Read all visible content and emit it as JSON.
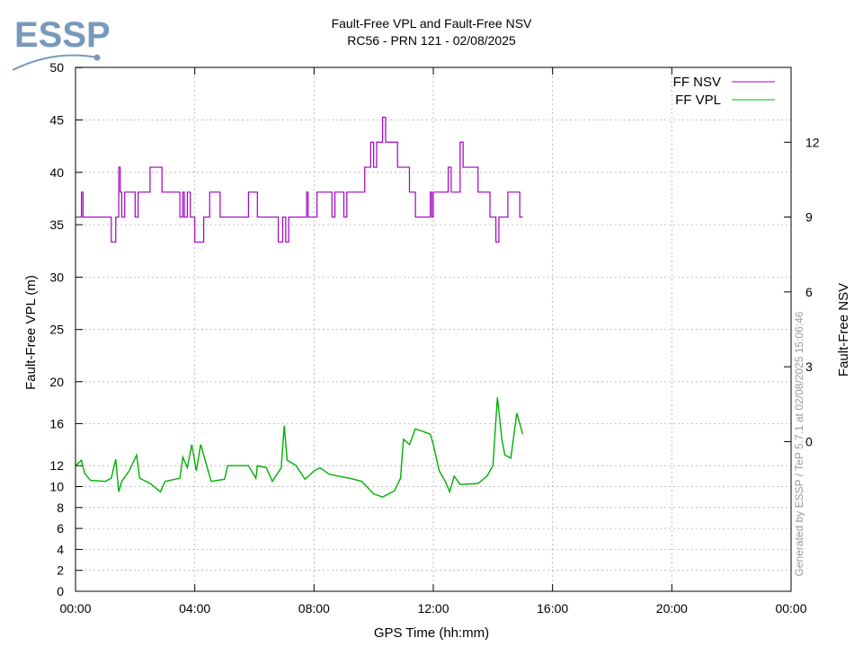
{
  "logo": {
    "text": "ESSP",
    "color": "#7799bb"
  },
  "chart_data": {
    "type": "line",
    "title": "Fault-Free VPL and Fault-Free NSV",
    "subtitle": "RC56 - PRN 121 - 02/08/2025",
    "xlabel": "GPS Time (hh:mm)",
    "ylabel": "Fault-Free VPL (m)",
    "y2label": "Fault-Free NSV",
    "generated_note": "Generated by ESSP / TeP 5.7.1 at 02/08/2025 15:06:46",
    "x_ticks": [
      "00:00",
      "04:00",
      "08:00",
      "12:00",
      "16:00",
      "20:00",
      "00:00"
    ],
    "y_ticks_lower": [
      "0",
      "2",
      "4",
      "6",
      "8",
      "10",
      "12",
      "16",
      "20"
    ],
    "y_ticks_upper": [
      "25",
      "30",
      "35",
      "40",
      "45",
      "50"
    ],
    "y2_ticks": [
      "0",
      "3",
      "6",
      "9",
      "12"
    ],
    "y_scale_note": "left axis is piecewise: 0-12 m in 2 m steps, 12-20 m in 4 m steps, 20-50 m in 5 m steps",
    "xlim_hours": [
      0,
      24
    ],
    "y2lim": [
      -6,
      15
    ],
    "grid": true,
    "legend_position": "top-right",
    "series": [
      {
        "name": "FF NSV",
        "color": "#a000c0",
        "axis": "right",
        "points": [
          [
            0.0,
            9
          ],
          [
            0.2,
            10
          ],
          [
            0.25,
            9
          ],
          [
            1.2,
            8
          ],
          [
            1.35,
            9
          ],
          [
            1.45,
            11
          ],
          [
            1.5,
            10
          ],
          [
            1.55,
            9
          ],
          [
            1.65,
            10
          ],
          [
            2.0,
            9
          ],
          [
            2.1,
            10
          ],
          [
            2.5,
            11
          ],
          [
            2.9,
            10
          ],
          [
            3.5,
            9
          ],
          [
            3.6,
            10
          ],
          [
            3.65,
            9
          ],
          [
            3.75,
            10
          ],
          [
            3.85,
            9
          ],
          [
            4.0,
            8
          ],
          [
            4.3,
            9
          ],
          [
            4.5,
            10
          ],
          [
            4.85,
            9
          ],
          [
            5.8,
            10
          ],
          [
            6.1,
            9
          ],
          [
            6.5,
            9
          ],
          [
            6.8,
            8
          ],
          [
            6.95,
            9
          ],
          [
            7.05,
            8
          ],
          [
            7.15,
            9
          ],
          [
            7.7,
            9
          ],
          [
            7.75,
            10
          ],
          [
            7.8,
            9
          ],
          [
            8.1,
            10
          ],
          [
            8.6,
            9
          ],
          [
            8.7,
            10
          ],
          [
            9.0,
            9
          ],
          [
            9.1,
            10
          ],
          [
            9.7,
            11
          ],
          [
            9.9,
            12
          ],
          [
            10.0,
            11
          ],
          [
            10.1,
            12
          ],
          [
            10.3,
            13
          ],
          [
            10.4,
            12
          ],
          [
            10.8,
            11
          ],
          [
            11.2,
            10
          ],
          [
            11.4,
            9
          ],
          [
            11.9,
            10
          ],
          [
            11.95,
            9
          ],
          [
            12.0,
            10
          ],
          [
            12.5,
            11
          ],
          [
            12.6,
            10
          ],
          [
            12.9,
            12
          ],
          [
            13.0,
            11
          ],
          [
            13.5,
            10
          ],
          [
            13.9,
            9
          ],
          [
            14.1,
            8
          ],
          [
            14.2,
            9
          ],
          [
            14.5,
            10
          ],
          [
            14.9,
            9
          ],
          [
            15.0,
            9
          ]
        ]
      },
      {
        "name": "FF VPL",
        "color": "#00b000",
        "axis": "left",
        "points": [
          [
            0.0,
            12.0
          ],
          [
            0.2,
            12.5
          ],
          [
            0.3,
            11.3
          ],
          [
            0.5,
            10.6
          ],
          [
            1.0,
            10.5
          ],
          [
            1.2,
            10.8
          ],
          [
            1.35,
            12.6
          ],
          [
            1.45,
            9.5
          ],
          [
            1.55,
            10.5
          ],
          [
            1.8,
            11.5
          ],
          [
            2.05,
            13.0
          ],
          [
            2.15,
            10.8
          ],
          [
            2.5,
            10.3
          ],
          [
            2.85,
            9.5
          ],
          [
            3.0,
            10.5
          ],
          [
            3.5,
            10.8
          ],
          [
            3.6,
            12.8
          ],
          [
            3.75,
            11.8
          ],
          [
            3.9,
            14.0
          ],
          [
            4.05,
            11.5
          ],
          [
            4.2,
            14.0
          ],
          [
            4.4,
            12.0
          ],
          [
            4.55,
            10.5
          ],
          [
            5.0,
            10.7
          ],
          [
            5.1,
            12.0
          ],
          [
            5.8,
            12.0
          ],
          [
            6.05,
            10.8
          ],
          [
            6.1,
            12.0
          ],
          [
            6.4,
            11.8
          ],
          [
            6.6,
            10.5
          ],
          [
            6.9,
            11.8
          ],
          [
            7.0,
            15.8
          ],
          [
            7.1,
            12.5
          ],
          [
            7.4,
            12.0
          ],
          [
            7.7,
            10.7
          ],
          [
            8.0,
            11.5
          ],
          [
            8.2,
            11.8
          ],
          [
            8.5,
            11.2
          ],
          [
            8.8,
            11.0
          ],
          [
            9.2,
            10.8
          ],
          [
            9.6,
            10.5
          ],
          [
            10.0,
            9.3
          ],
          [
            10.3,
            9.0
          ],
          [
            10.7,
            9.6
          ],
          [
            10.9,
            10.8
          ],
          [
            11.0,
            14.5
          ],
          [
            11.2,
            14.0
          ],
          [
            11.4,
            15.5
          ],
          [
            11.9,
            15.0
          ],
          [
            12.0,
            14.0
          ],
          [
            12.2,
            11.5
          ],
          [
            12.4,
            10.5
          ],
          [
            12.55,
            9.5
          ],
          [
            12.7,
            11.0
          ],
          [
            12.9,
            10.2
          ],
          [
            13.5,
            10.3
          ],
          [
            13.8,
            11.0
          ],
          [
            14.0,
            12.0
          ],
          [
            14.15,
            18.5
          ],
          [
            14.3,
            14.5
          ],
          [
            14.4,
            13.0
          ],
          [
            14.6,
            12.7
          ],
          [
            14.8,
            17.0
          ],
          [
            15.0,
            15.0
          ]
        ]
      }
    ]
  }
}
